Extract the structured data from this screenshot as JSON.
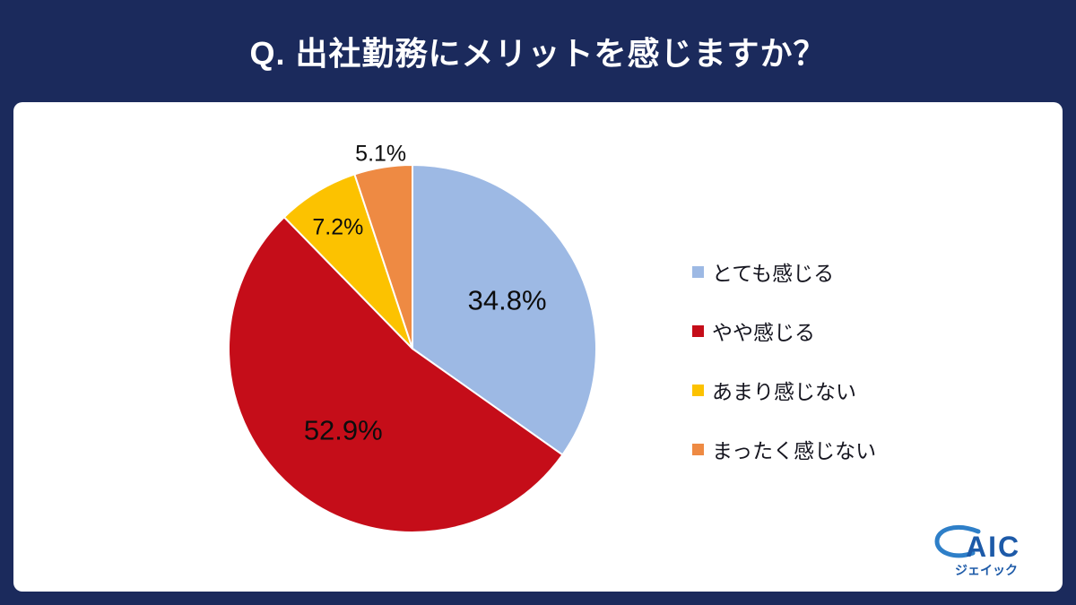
{
  "header": {
    "title": "Q. 出社勤務にメリットを感じますか？"
  },
  "chart_data": {
    "type": "pie",
    "title": "Q. 出社勤務にメリットを感じますか？",
    "start_angle_deg": 0,
    "direction": "clockwise",
    "legend_position": "right",
    "slices": [
      {
        "label": "とても感じる",
        "value": 34.8,
        "data_label": "34.8%",
        "color": "#9db9e4",
        "label_placement": "inside"
      },
      {
        "label": "やや感じる",
        "value": 52.9,
        "data_label": "52.9%",
        "color": "#c50d19",
        "label_placement": "inside"
      },
      {
        "label": "あまり感じない",
        "value": 7.2,
        "data_label": "7.2%",
        "color": "#fcc200",
        "label_placement": "edge"
      },
      {
        "label": "まったく感じない",
        "value": 5.1,
        "data_label": "5.1%",
        "color": "#ee8a43",
        "label_placement": "outside"
      }
    ]
  },
  "logo": {
    "text": "AIC",
    "subtext": "ジェイック",
    "color": "#1d5aa8"
  },
  "colors": {
    "background": "#1b2a5c",
    "card": "#ffffff",
    "label_text": "#0d0d0d"
  }
}
